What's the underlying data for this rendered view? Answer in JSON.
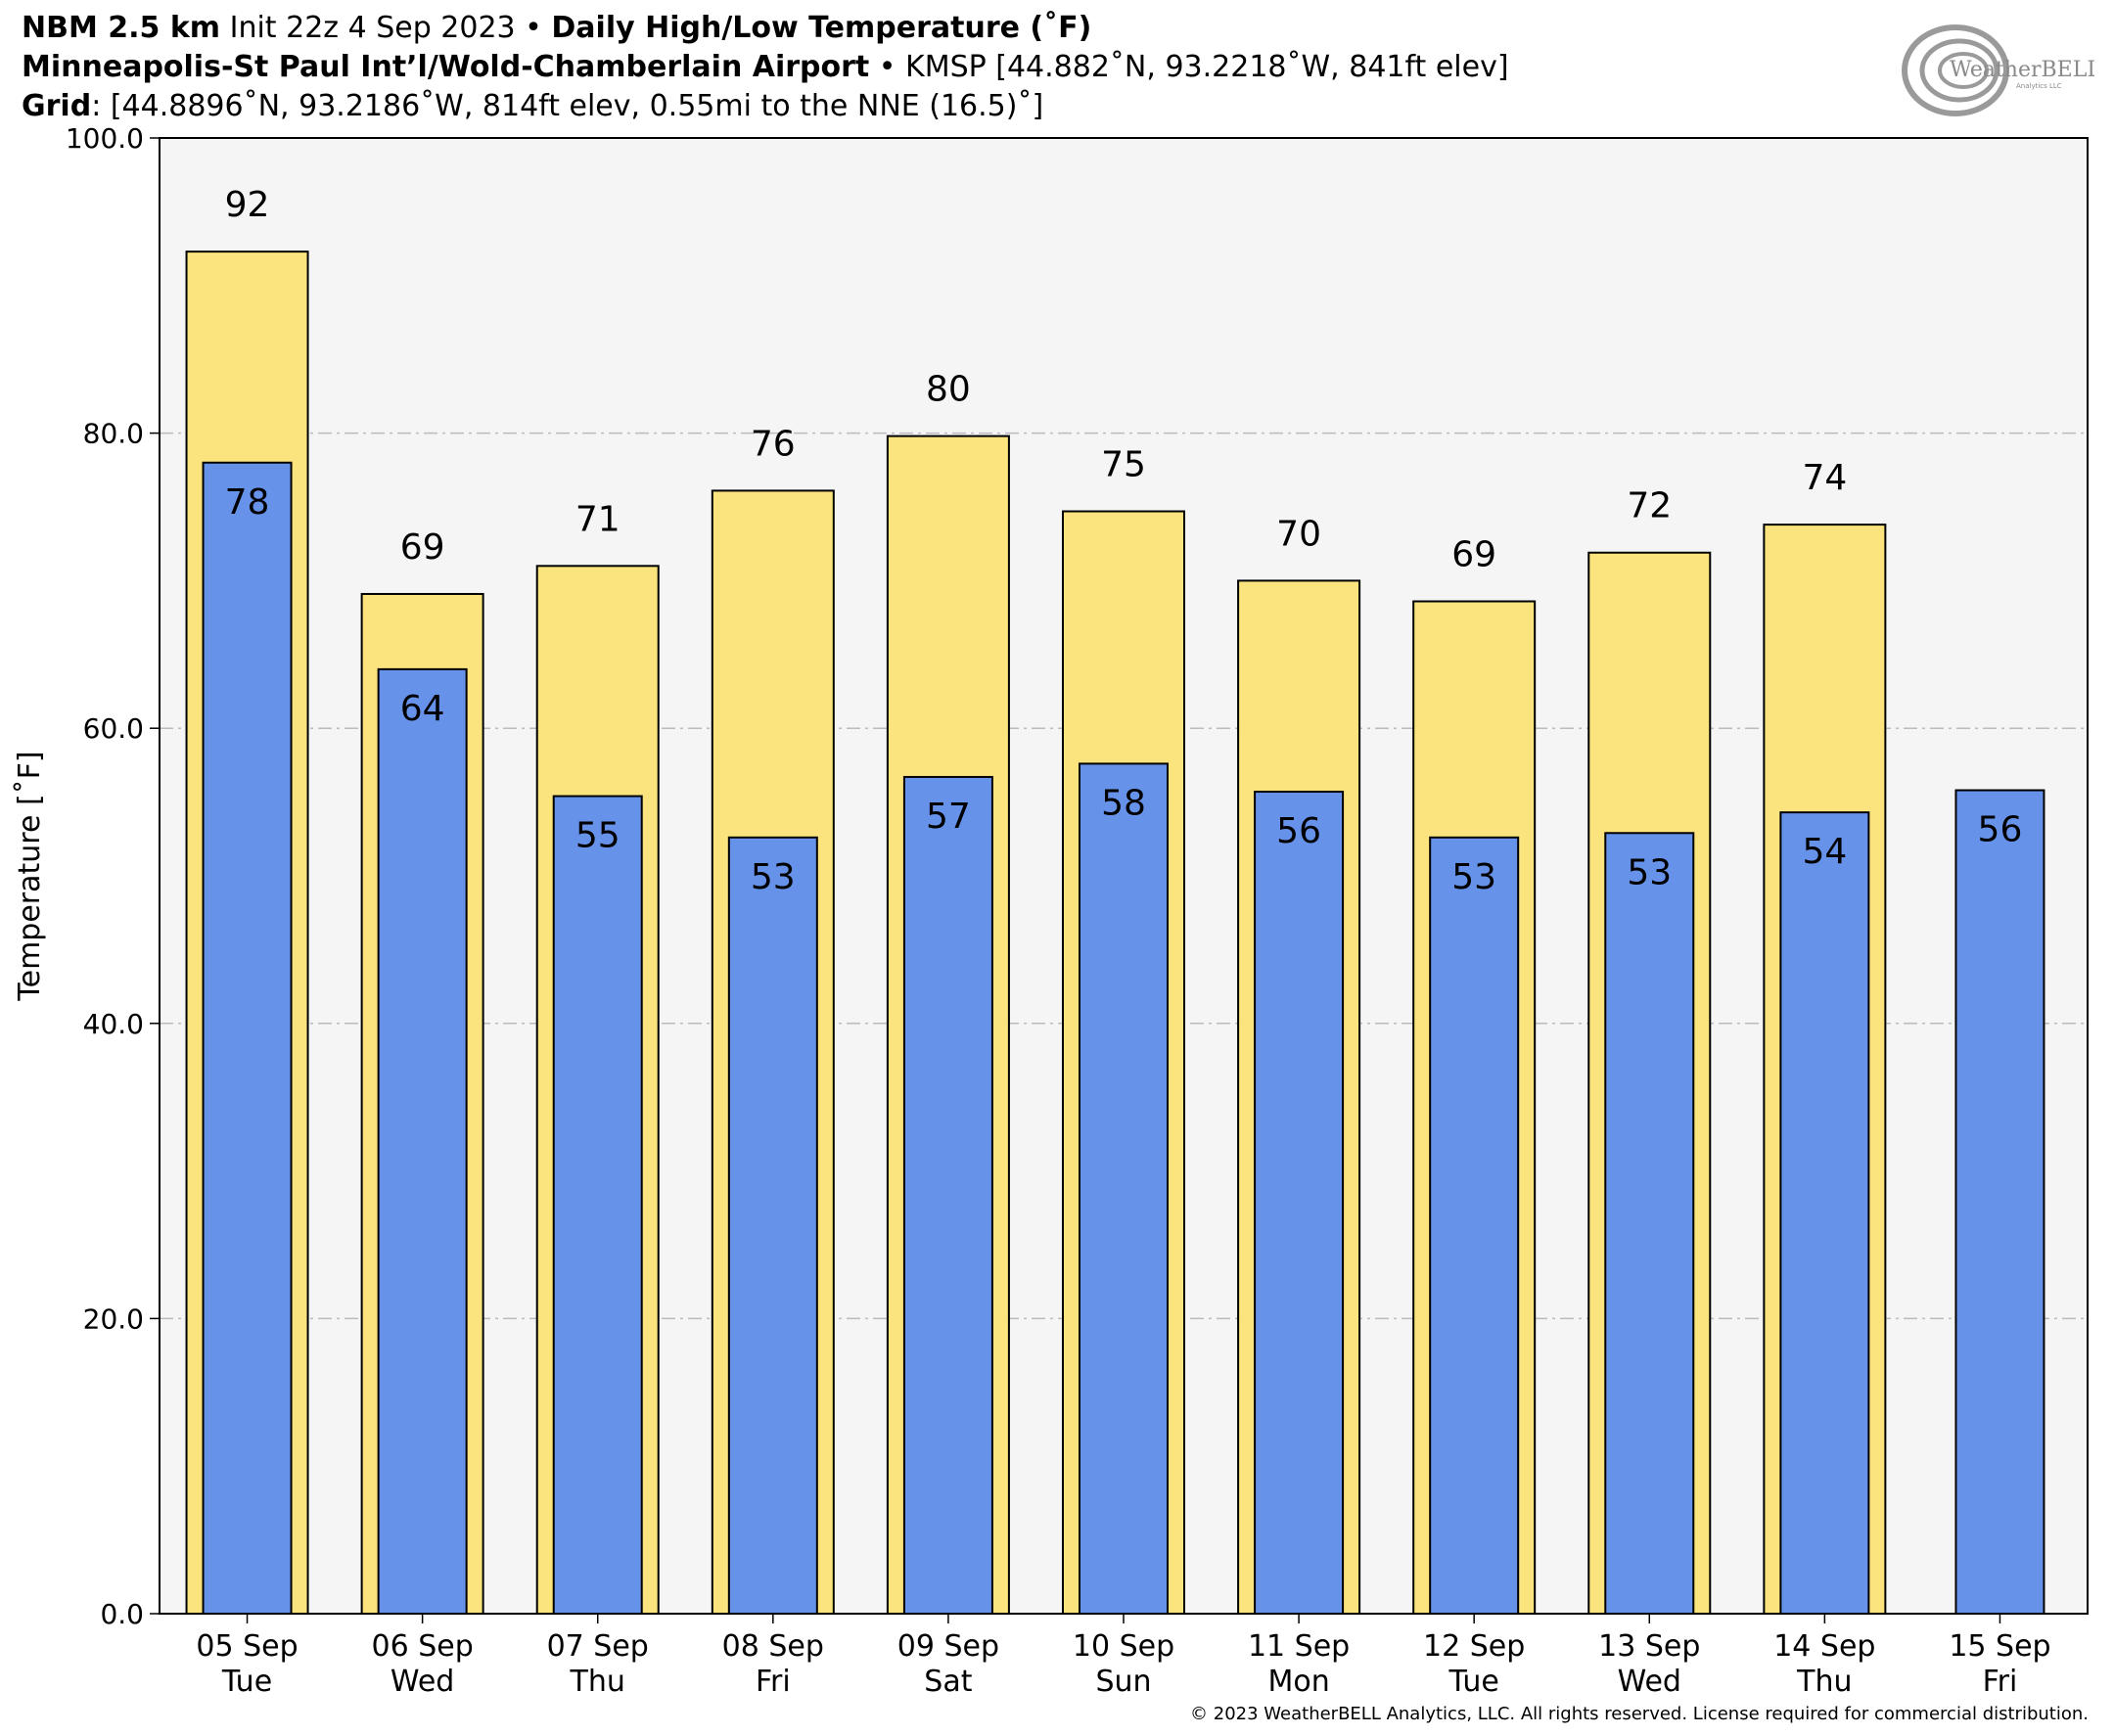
{
  "header": {
    "line1_model": "NBM 2.5 km",
    "line1_init": " Init 22z 4 Sep 2023 • ",
    "line1_product": "Daily High/Low Temperature (˚F)",
    "line2_station": "Minneapolis-St Paul Int’l/Wold-Chamberlain Airport",
    "line2_info": " • KMSP [44.882˚N, 93.2218˚W, 841ft elev]",
    "line3_label": "Grid",
    "line3_info": ": [44.8896˚N, 93.2186˚W, 814ft elev, 0.55mi to the NNE (16.5)˚]"
  },
  "logo": {
    "text": "WeatherBELL",
    "subtext": "Analytics LLC"
  },
  "copyright": "© 2023 WeatherBELL Analytics, LLC. All rights reserved. License required for commercial distribution.",
  "colors": {
    "high": "#fbe47e",
    "low": "#6692ea",
    "plot_bg": "#f5f5f5",
    "grid": "#bbbbbb"
  },
  "chart_data": {
    "type": "bar",
    "ylabel": "Temperature [˚F]",
    "ylim": [
      0,
      100
    ],
    "yticks": [
      "0.0",
      "20.0",
      "40.0",
      "60.0",
      "80.0",
      "100.0"
    ],
    "grid": true,
    "categories": [
      [
        "05 Sep",
        "Tue"
      ],
      [
        "06 Sep",
        "Wed"
      ],
      [
        "07 Sep",
        "Thu"
      ],
      [
        "08 Sep",
        "Fri"
      ],
      [
        "09 Sep",
        "Sat"
      ],
      [
        "10 Sep",
        "Sun"
      ],
      [
        "11 Sep",
        "Mon"
      ],
      [
        "12 Sep",
        "Tue"
      ],
      [
        "13 Sep",
        "Wed"
      ],
      [
        "14 Sep",
        "Thu"
      ],
      [
        "15 Sep",
        "Fri"
      ]
    ],
    "series": [
      {
        "key": "high",
        "values": [
          92.3,
          69.1,
          71.0,
          76.1,
          79.8,
          74.7,
          70.0,
          68.6,
          71.9,
          73.8,
          null
        ],
        "labels": [
          "92",
          "69",
          "71",
          "76",
          "80",
          "75",
          "70",
          "69",
          "72",
          "74",
          ""
        ]
      },
      {
        "key": "low",
        "values": [
          78.0,
          64.0,
          55.4,
          52.6,
          56.7,
          57.6,
          55.7,
          52.6,
          52.9,
          54.3,
          55.8
        ],
        "labels": [
          "78",
          "64",
          "55",
          "53",
          "57",
          "58",
          "56",
          "53",
          "53",
          "54",
          "56"
        ]
      }
    ]
  }
}
